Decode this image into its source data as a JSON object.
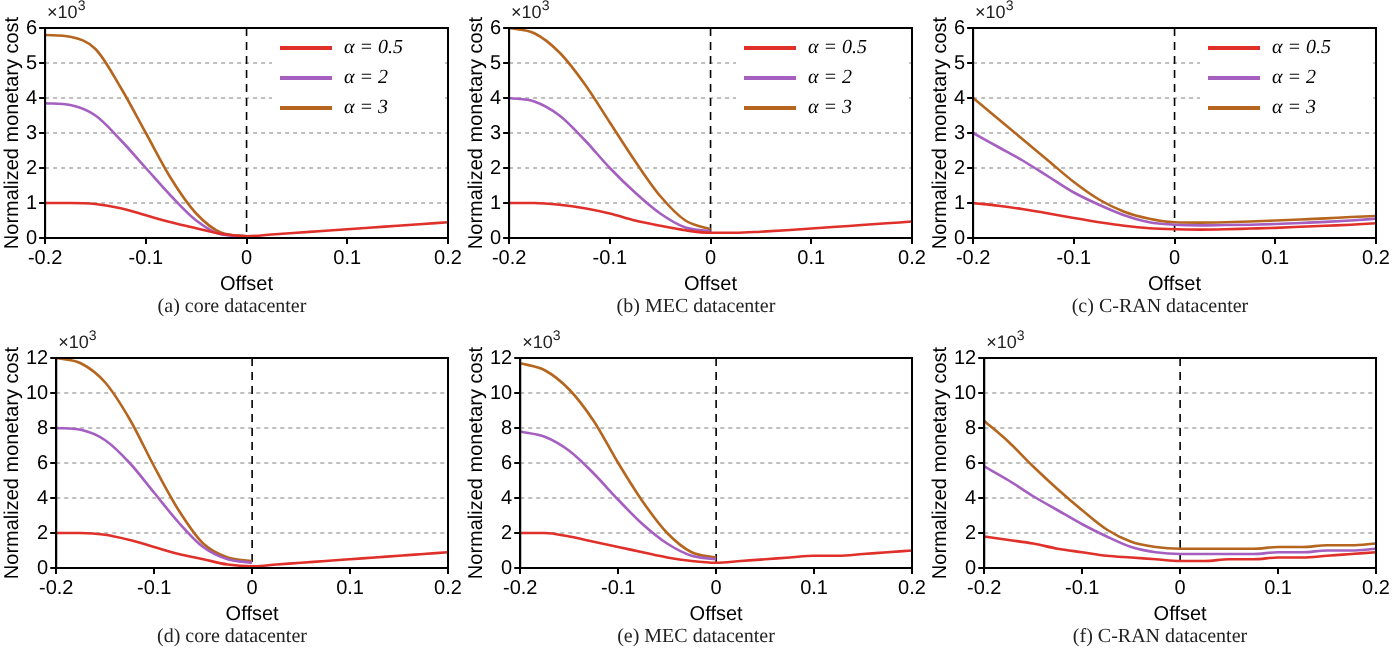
{
  "chart_data": [
    {
      "type": "line",
      "xlabel": "Offset",
      "ylabel": "Normalized monetary cost",
      "annotations": [
        "×10$^{3}$",
        "(a) core datacenter"
      ],
      "x": [
        -0.2,
        -0.175,
        -0.15,
        -0.125,
        -0.1,
        -0.075,
        -0.05,
        -0.025,
        0,
        0.025,
        0.05,
        0.075,
        0.1,
        0.125,
        0.15,
        0.175,
        0.2
      ],
      "xlim": [
        -0.2,
        0.2
      ],
      "xticks": [
        -0.2,
        -0.1,
        0,
        0.1,
        0.2
      ],
      "ylim": [
        0,
        6
      ],
      "yticks": [
        0,
        1,
        2,
        3,
        4,
        5,
        6
      ],
      "grid": "y",
      "legend": "top right",
      "marker": "none",
      "line_style": "solid",
      "ref_lines": [
        {
          "axis": "x",
          "value": 0,
          "line_style": "dashed",
          "color": "#000000"
        }
      ],
      "series": [
        {
          "name": "α = 0.5",
          "color": "#e0302a",
          "values": [
            1,
            1,
            0.97,
            0.85,
            0.65,
            0.45,
            0.28,
            0.12,
            0.05,
            0.1,
            0.15,
            0.2,
            0.25,
            0.3,
            0.35,
            0.4,
            0.45
          ]
        },
        {
          "name": "α = 2",
          "color": "#a45fc0",
          "values": [
            3.85,
            3.8,
            3.5,
            2.8,
            2.0,
            1.2,
            0.5,
            0.1,
            0.05,
            null,
            null,
            null,
            null,
            null,
            null,
            null,
            null
          ]
        },
        {
          "name": "α = 3",
          "color": "#b5651d",
          "values": [
            5.8,
            5.75,
            5.4,
            4.3,
            3.0,
            1.7,
            0.7,
            0.15,
            0.05,
            null,
            null,
            null,
            null,
            null,
            null,
            null,
            null
          ]
        }
      ]
    },
    {
      "type": "line",
      "xlabel": "Offset",
      "ylabel": "Normalized monetary cost",
      "annotations": [
        "×10$^{3}$",
        "(b) MEC datacenter"
      ],
      "x": [
        -0.2,
        -0.175,
        -0.15,
        -0.125,
        -0.1,
        -0.075,
        -0.05,
        -0.025,
        0,
        0.025,
        0.05,
        0.075,
        0.1,
        0.125,
        0.15,
        0.175,
        0.2
      ],
      "xlim": [
        -0.2,
        0.2
      ],
      "xticks": [
        -0.2,
        -0.1,
        0,
        0.1,
        0.2
      ],
      "ylim": [
        0,
        6
      ],
      "yticks": [
        0,
        1,
        2,
        3,
        4,
        5,
        6
      ],
      "grid": "y",
      "legend": "top right",
      "marker": "none",
      "line_style": "solid",
      "ref_lines": [
        {
          "axis": "x",
          "value": 0,
          "line_style": "dashed",
          "color": "#000000"
        }
      ],
      "series": [
        {
          "name": "α = 0.5",
          "color": "#e0302a",
          "values": [
            1,
            1,
            0.95,
            0.85,
            0.7,
            0.5,
            0.35,
            0.22,
            0.15,
            0.15,
            0.18,
            0.22,
            0.27,
            0.32,
            0.37,
            0.42,
            0.47
          ]
        },
        {
          "name": "α = 2",
          "color": "#a45fc0",
          "values": [
            4,
            3.9,
            3.5,
            2.8,
            2.0,
            1.3,
            0.7,
            0.3,
            0.2,
            null,
            null,
            null,
            null,
            null,
            null,
            null,
            null
          ]
        },
        {
          "name": "α = 3",
          "color": "#b5651d",
          "values": [
            6,
            5.85,
            5.3,
            4.4,
            3.3,
            2.2,
            1.2,
            0.5,
            0.25,
            null,
            null,
            null,
            null,
            null,
            null,
            null,
            null
          ]
        }
      ]
    },
    {
      "type": "line",
      "xlabel": "Offset",
      "ylabel": "Normalized monetary cost",
      "annotations": [
        "×10$^{3}$",
        "(c) C-RAN datacenter"
      ],
      "x": [
        -0.2,
        -0.175,
        -0.15,
        -0.125,
        -0.1,
        -0.075,
        -0.05,
        -0.025,
        0,
        0.025,
        0.05,
        0.075,
        0.1,
        0.125,
        0.15,
        0.175,
        0.2
      ],
      "xlim": [
        -0.2,
        0.2
      ],
      "xticks": [
        -0.2,
        -0.1,
        0,
        0.1,
        0.2
      ],
      "ylim": [
        0,
        6
      ],
      "yticks": [
        0,
        1,
        2,
        3,
        4,
        5,
        6
      ],
      "grid": "y",
      "legend": "top right",
      "marker": "none",
      "line_style": "solid",
      "ref_lines": [
        {
          "axis": "x",
          "value": 0,
          "line_style": "dashed",
          "color": "#000000"
        }
      ],
      "series": [
        {
          "name": "α = 0.5",
          "color": "#e0302a",
          "values": [
            1,
            0.92,
            0.82,
            0.7,
            0.57,
            0.45,
            0.35,
            0.28,
            0.25,
            0.24,
            0.25,
            0.27,
            0.29,
            0.32,
            0.35,
            0.38,
            0.42
          ]
        },
        {
          "name": "α = 2",
          "color": "#a45fc0",
          "values": [
            3,
            2.6,
            2.2,
            1.75,
            1.3,
            0.95,
            0.65,
            0.45,
            0.38,
            0.36,
            0.37,
            0.38,
            0.4,
            0.43,
            0.46,
            0.5,
            0.55
          ]
        },
        {
          "name": "α = 3",
          "color": "#b5651d",
          "values": [
            4,
            3.4,
            2.8,
            2.2,
            1.6,
            1.1,
            0.75,
            0.55,
            0.45,
            0.44,
            0.45,
            0.47,
            0.5,
            0.53,
            0.56,
            0.6,
            0.63
          ]
        }
      ]
    },
    {
      "type": "line",
      "xlabel": "Offset",
      "ylabel": "Normalized monetary cost",
      "annotations": [
        "×10$^{3}$",
        "(d) core datacenter"
      ],
      "x": [
        -0.2,
        -0.175,
        -0.15,
        -0.125,
        -0.1,
        -0.075,
        -0.05,
        -0.025,
        0,
        0.025,
        0.05,
        0.075,
        0.1,
        0.125,
        0.15,
        0.175,
        0.2
      ],
      "xlim": [
        -0.2,
        0.2
      ],
      "xticks": [
        -0.2,
        -0.1,
        0,
        0.1,
        0.2
      ],
      "ylim": [
        0,
        12
      ],
      "yticks": [
        0,
        2,
        4,
        6,
        8,
        10,
        12
      ],
      "grid": "y",
      "marker": "none",
      "line_style": "solid",
      "ref_lines": [
        {
          "axis": "x",
          "value": 0,
          "line_style": "dashed",
          "color": "#000000"
        }
      ],
      "series": [
        {
          "color": "#e0302a",
          "values": [
            2,
            2,
            1.9,
            1.6,
            1.2,
            0.8,
            0.5,
            0.2,
            0.1,
            0.2,
            0.3,
            0.4,
            0.5,
            0.6,
            0.7,
            0.8,
            0.9
          ]
        },
        {
          "color": "#a45fc0",
          "values": [
            8,
            7.9,
            7.3,
            6,
            4.3,
            2.6,
            1.2,
            0.5,
            0.3,
            null,
            null,
            null,
            null,
            null,
            null,
            null,
            null
          ]
        },
        {
          "color": "#b5651d",
          "values": [
            12,
            11.7,
            10.6,
            8.5,
            5.8,
            3.3,
            1.4,
            0.6,
            0.4,
            null,
            null,
            null,
            null,
            null,
            null,
            null,
            null
          ]
        }
      ]
    },
    {
      "type": "line",
      "xlabel": "Offset",
      "ylabel": "Normalized monetary cost",
      "annotations": [
        "×10$^{3}$",
        "(e) MEC datacenter"
      ],
      "x": [
        -0.2,
        -0.175,
        -0.15,
        -0.125,
        -0.1,
        -0.075,
        -0.05,
        -0.025,
        0,
        0.025,
        0.05,
        0.075,
        0.1,
        0.125,
        0.15,
        0.175,
        0.2
      ],
      "xlim": [
        -0.2,
        0.2
      ],
      "xticks": [
        -0.2,
        -0.1,
        0,
        0.1,
        0.2
      ],
      "ylim": [
        0,
        12
      ],
      "yticks": [
        0,
        2,
        4,
        6,
        8,
        10,
        12
      ],
      "grid": "y",
      "marker": "none",
      "line_style": "solid",
      "ref_lines": [
        {
          "axis": "x",
          "value": 0,
          "line_style": "dashed",
          "color": "#000000"
        }
      ],
      "series": [
        {
          "color": "#e0302a",
          "values": [
            2,
            2,
            1.8,
            1.5,
            1.2,
            0.9,
            0.6,
            0.4,
            0.3,
            0.4,
            0.5,
            0.6,
            0.7,
            0.7,
            0.8,
            0.9,
            1.0
          ]
        },
        {
          "color": "#a45fc0",
          "values": [
            7.8,
            7.5,
            6.7,
            5.4,
            3.9,
            2.5,
            1.4,
            0.7,
            0.5,
            null,
            null,
            null,
            null,
            null,
            null,
            null,
            null
          ]
        },
        {
          "color": "#b5651d",
          "values": [
            11.7,
            11.3,
            10.2,
            8.4,
            6.0,
            3.8,
            2.0,
            0.9,
            0.6,
            null,
            null,
            null,
            null,
            null,
            null,
            null,
            null
          ]
        }
      ]
    },
    {
      "type": "line",
      "xlabel": "Offset",
      "ylabel": "Normalized monetary cost",
      "annotations": [
        "×10$^{3}$",
        "(f) C-RAN datacenter"
      ],
      "x": [
        -0.2,
        -0.175,
        -0.15,
        -0.125,
        -0.1,
        -0.075,
        -0.05,
        -0.025,
        0,
        0.025,
        0.05,
        0.075,
        0.1,
        0.125,
        0.15,
        0.175,
        0.2
      ],
      "xlim": [
        -0.2,
        0.2
      ],
      "xticks": [
        -0.2,
        -0.1,
        0,
        0.1,
        0.2
      ],
      "ylim": [
        0,
        12
      ],
      "yticks": [
        0,
        2,
        4,
        6,
        8,
        10,
        12
      ],
      "grid": "y",
      "marker": "none",
      "line_style": "solid",
      "ref_lines": [
        {
          "axis": "x",
          "value": 0,
          "line_style": "dashed",
          "color": "#000000"
        }
      ],
      "series": [
        {
          "color": "#e0302a",
          "values": [
            1.8,
            1.6,
            1.4,
            1.1,
            0.9,
            0.7,
            0.6,
            0.5,
            0.4,
            0.4,
            0.5,
            0.5,
            0.6,
            0.6,
            0.7,
            0.8,
            0.9
          ]
        },
        {
          "color": "#a45fc0",
          "values": [
            5.8,
            5,
            4.1,
            3.3,
            2.5,
            1.8,
            1.2,
            0.9,
            0.8,
            0.8,
            0.8,
            0.8,
            0.9,
            0.9,
            1.0,
            1.0,
            1.1
          ]
        },
        {
          "color": "#b5651d",
          "values": [
            8.4,
            7.2,
            5.8,
            4.5,
            3.3,
            2.2,
            1.5,
            1.2,
            1.1,
            1.1,
            1.1,
            1.1,
            1.2,
            1.2,
            1.3,
            1.3,
            1.4
          ]
        }
      ]
    }
  ]
}
